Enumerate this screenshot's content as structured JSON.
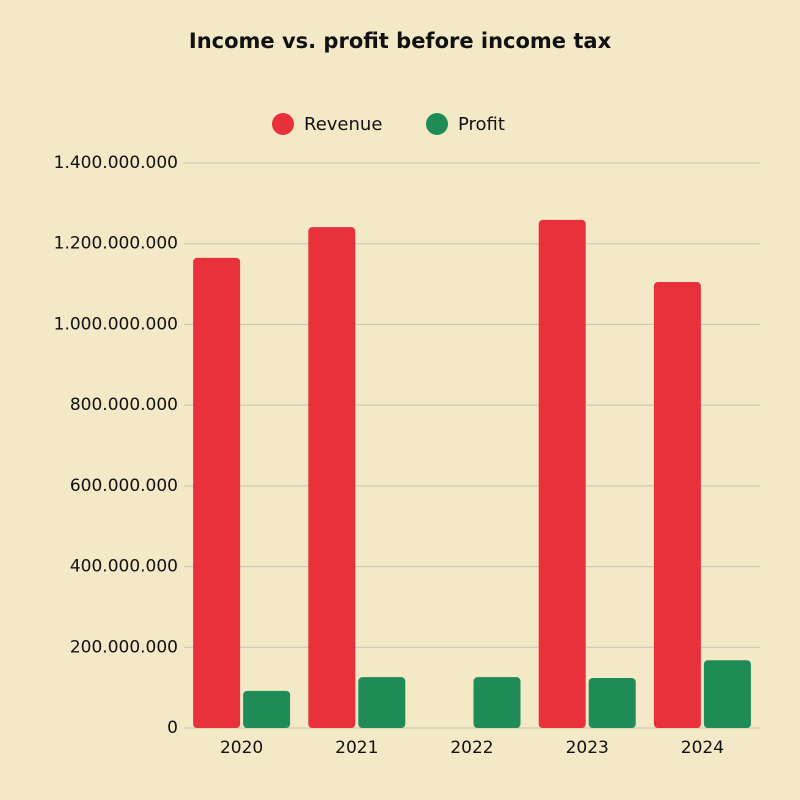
{
  "chart_data": {
    "type": "bar",
    "title": "Income vs. profit before income tax",
    "categories": [
      "2020",
      "2021",
      "2022",
      "2023",
      "2024"
    ],
    "series": [
      {
        "name": "Revenue",
        "color": "#e8313a",
        "values": [
          1165000000,
          1241000000,
          null,
          1259000000,
          1105000000
        ]
      },
      {
        "name": "Profit",
        "color": "#1f8b57",
        "values": [
          92000000,
          126000000,
          126000000,
          124000000,
          168000000
        ]
      }
    ],
    "ylim": [
      0,
      1400000000
    ],
    "yticks": [
      0,
      {
        "value": 200000000,
        "label": "200.000.000"
      },
      {
        "value": 400000000,
        "label": "400.000.000"
      },
      {
        "value": 600000000,
        "label": "600.000.000"
      },
      {
        "value": 800000000,
        "label": "800.000.000"
      },
      {
        "value": 1000000000,
        "label": "1.000.000.000"
      },
      {
        "value": 1200000000,
        "label": "1.200.000.000"
      },
      {
        "value": 1400000000,
        "label": "1.400.000.000"
      }
    ],
    "grid": true
  }
}
